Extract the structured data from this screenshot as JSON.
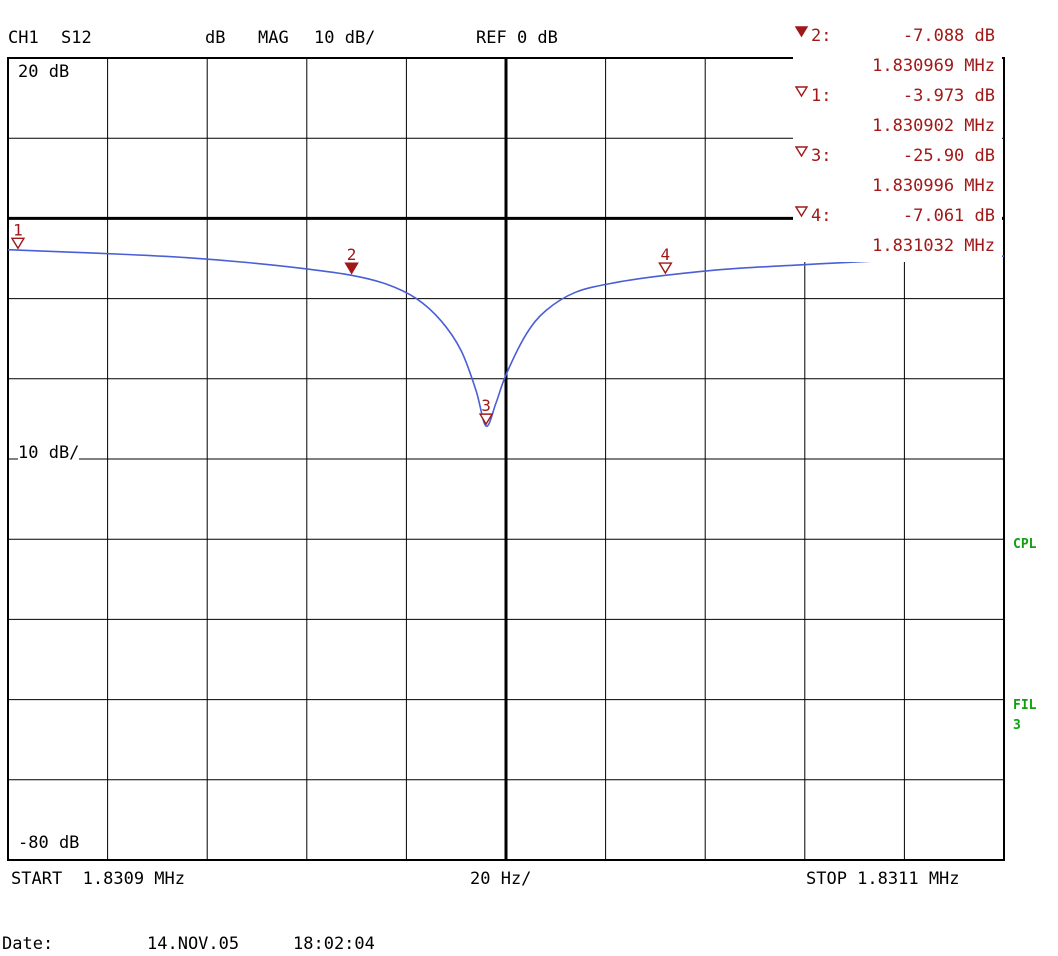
{
  "header": {
    "channel": "CH1",
    "param": "S12",
    "unit": "dB",
    "format": "MAG",
    "scale": "10 dB/",
    "ref": "REF 0 dB"
  },
  "axis_labels": {
    "top": "20 dB",
    "middle": "10 dB/",
    "bottom": "-80 dB"
  },
  "footer": {
    "start": "START  1.8309 MHz",
    "span": "20 Hz/",
    "stop": "STOP 1.8311 MHz",
    "date_label": "Date:",
    "date": "14.NOV.05",
    "time": "18:02:04"
  },
  "side_labels": {
    "cpl": "CPL",
    "fil": "FIL",
    "fil_num": "3"
  },
  "marker_table": [
    {
      "num": "2",
      "label": "2:",
      "value": "-7.088 dB",
      "freq": "1.830969 MHz",
      "active": true
    },
    {
      "num": "1",
      "label": "1:",
      "value": "-3.973 dB",
      "freq": "1.830902 MHz",
      "active": false
    },
    {
      "num": "3",
      "label": "3:",
      "value": "-25.90 dB",
      "freq": "1.830996 MHz",
      "active": false
    },
    {
      "num": "4",
      "label": "4:",
      "value": "-7.061 dB",
      "freq": "1.831032 MHz",
      "active": false
    }
  ],
  "colors": {
    "trace": "#4a5fd6",
    "marker": "#a01818",
    "grid": "#000000",
    "side": "#10a010"
  },
  "chart_data": {
    "type": "line",
    "xlabel": "",
    "ylabel": "",
    "x_unit": "MHz",
    "y_unit": "dB",
    "xlim": [
      1.8309,
      1.8311
    ],
    "ylim": [
      -80,
      20
    ],
    "ref_level": 0,
    "series": [
      {
        "x": [
          1.8309,
          1.830912,
          1.830924,
          1.830936,
          1.830948,
          1.83096,
          1.830969,
          1.830976,
          1.830982,
          1.830987,
          1.830991,
          1.830994,
          1.830996,
          1.830998,
          1.831,
          1.831004,
          1.831008,
          1.831014,
          1.831022,
          1.831032,
          1.831045,
          1.831065,
          1.831085,
          1.8311
        ],
        "y": [
          -3.9,
          -4.2,
          -4.5,
          -4.9,
          -5.5,
          -6.3,
          -7.1,
          -8.2,
          -10.0,
          -12.8,
          -16.5,
          -21.5,
          -25.9,
          -23.0,
          -19.5,
          -14.5,
          -11.5,
          -9.2,
          -8.0,
          -7.1,
          -6.3,
          -5.6,
          -5.0,
          -4.7
        ]
      }
    ],
    "markers": [
      {
        "num": "1",
        "x": 1.830902,
        "y": -3.973,
        "active": false
      },
      {
        "num": "2",
        "x": 1.830969,
        "y": -7.088,
        "active": true
      },
      {
        "num": "3",
        "x": 1.830996,
        "y": -25.9,
        "active": false
      },
      {
        "num": "4",
        "x": 1.831032,
        "y": -7.061,
        "active": false
      }
    ]
  }
}
